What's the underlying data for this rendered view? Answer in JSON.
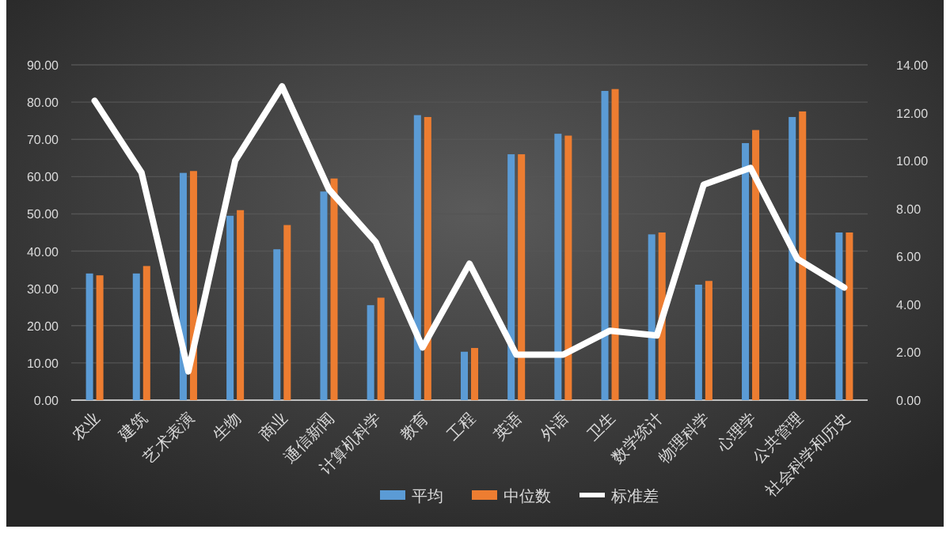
{
  "chart_data": {
    "type": "bar",
    "categories": [
      "农业",
      "建筑",
      "艺术表演",
      "生物",
      "商业",
      "通信新闻",
      "计算机科学",
      "教育",
      "工程",
      "英语",
      "外语",
      "卫生",
      "数学统计",
      "物理科学",
      "心理学",
      "公共管理",
      "社会科学和历史"
    ],
    "series": [
      {
        "name": "平均",
        "color": "#5b9bd5",
        "values": [
          34,
          34,
          61,
          49.5,
          40.5,
          56,
          25.5,
          76.5,
          13,
          66,
          71.5,
          83,
          44.5,
          31,
          69,
          76,
          45
        ]
      },
      {
        "name": "中位数",
        "color": "#ed7d31",
        "values": [
          33.5,
          36,
          61.5,
          51,
          47,
          59.5,
          27.5,
          76,
          14,
          66,
          71,
          83.5,
          45,
          32,
          72.5,
          77.5,
          45
        ]
      },
      {
        "name": "标准差",
        "type": "line",
        "axis": "y2",
        "color": "#ffffff",
        "values": [
          12.5,
          9.5,
          1.2,
          10,
          13.1,
          8.8,
          6.6,
          2.2,
          5.7,
          1.9,
          1.9,
          2.9,
          2.7,
          9,
          9.7,
          5.9,
          4.7
        ]
      }
    ],
    "ylim": [
      0,
      90
    ],
    "yticks": [
      {
        "value": 0,
        "label": "0.00"
      },
      {
        "value": 10,
        "label": "10.00"
      },
      {
        "value": 20,
        "label": "20.00"
      },
      {
        "value": 30,
        "label": "30.00"
      },
      {
        "value": 40,
        "label": "40.00"
      },
      {
        "value": 50,
        "label": "50.00"
      },
      {
        "value": 60,
        "label": "60.00"
      },
      {
        "value": 70,
        "label": "70.00"
      },
      {
        "value": 80,
        "label": "80.00"
      },
      {
        "value": 90,
        "label": "90.00"
      }
    ],
    "y2lim": [
      0,
      14
    ],
    "y2ticks": [
      {
        "value": 0,
        "label": "0.00"
      },
      {
        "value": 2,
        "label": "2.00"
      },
      {
        "value": 4,
        "label": "4.00"
      },
      {
        "value": 6,
        "label": "6.00"
      },
      {
        "value": 8,
        "label": "8.00"
      },
      {
        "value": 10,
        "label": "10.00"
      },
      {
        "value": 12,
        "label": "12.00"
      },
      {
        "value": 14,
        "label": "14.00"
      }
    ],
    "grid": "y",
    "legend": "bottom"
  }
}
